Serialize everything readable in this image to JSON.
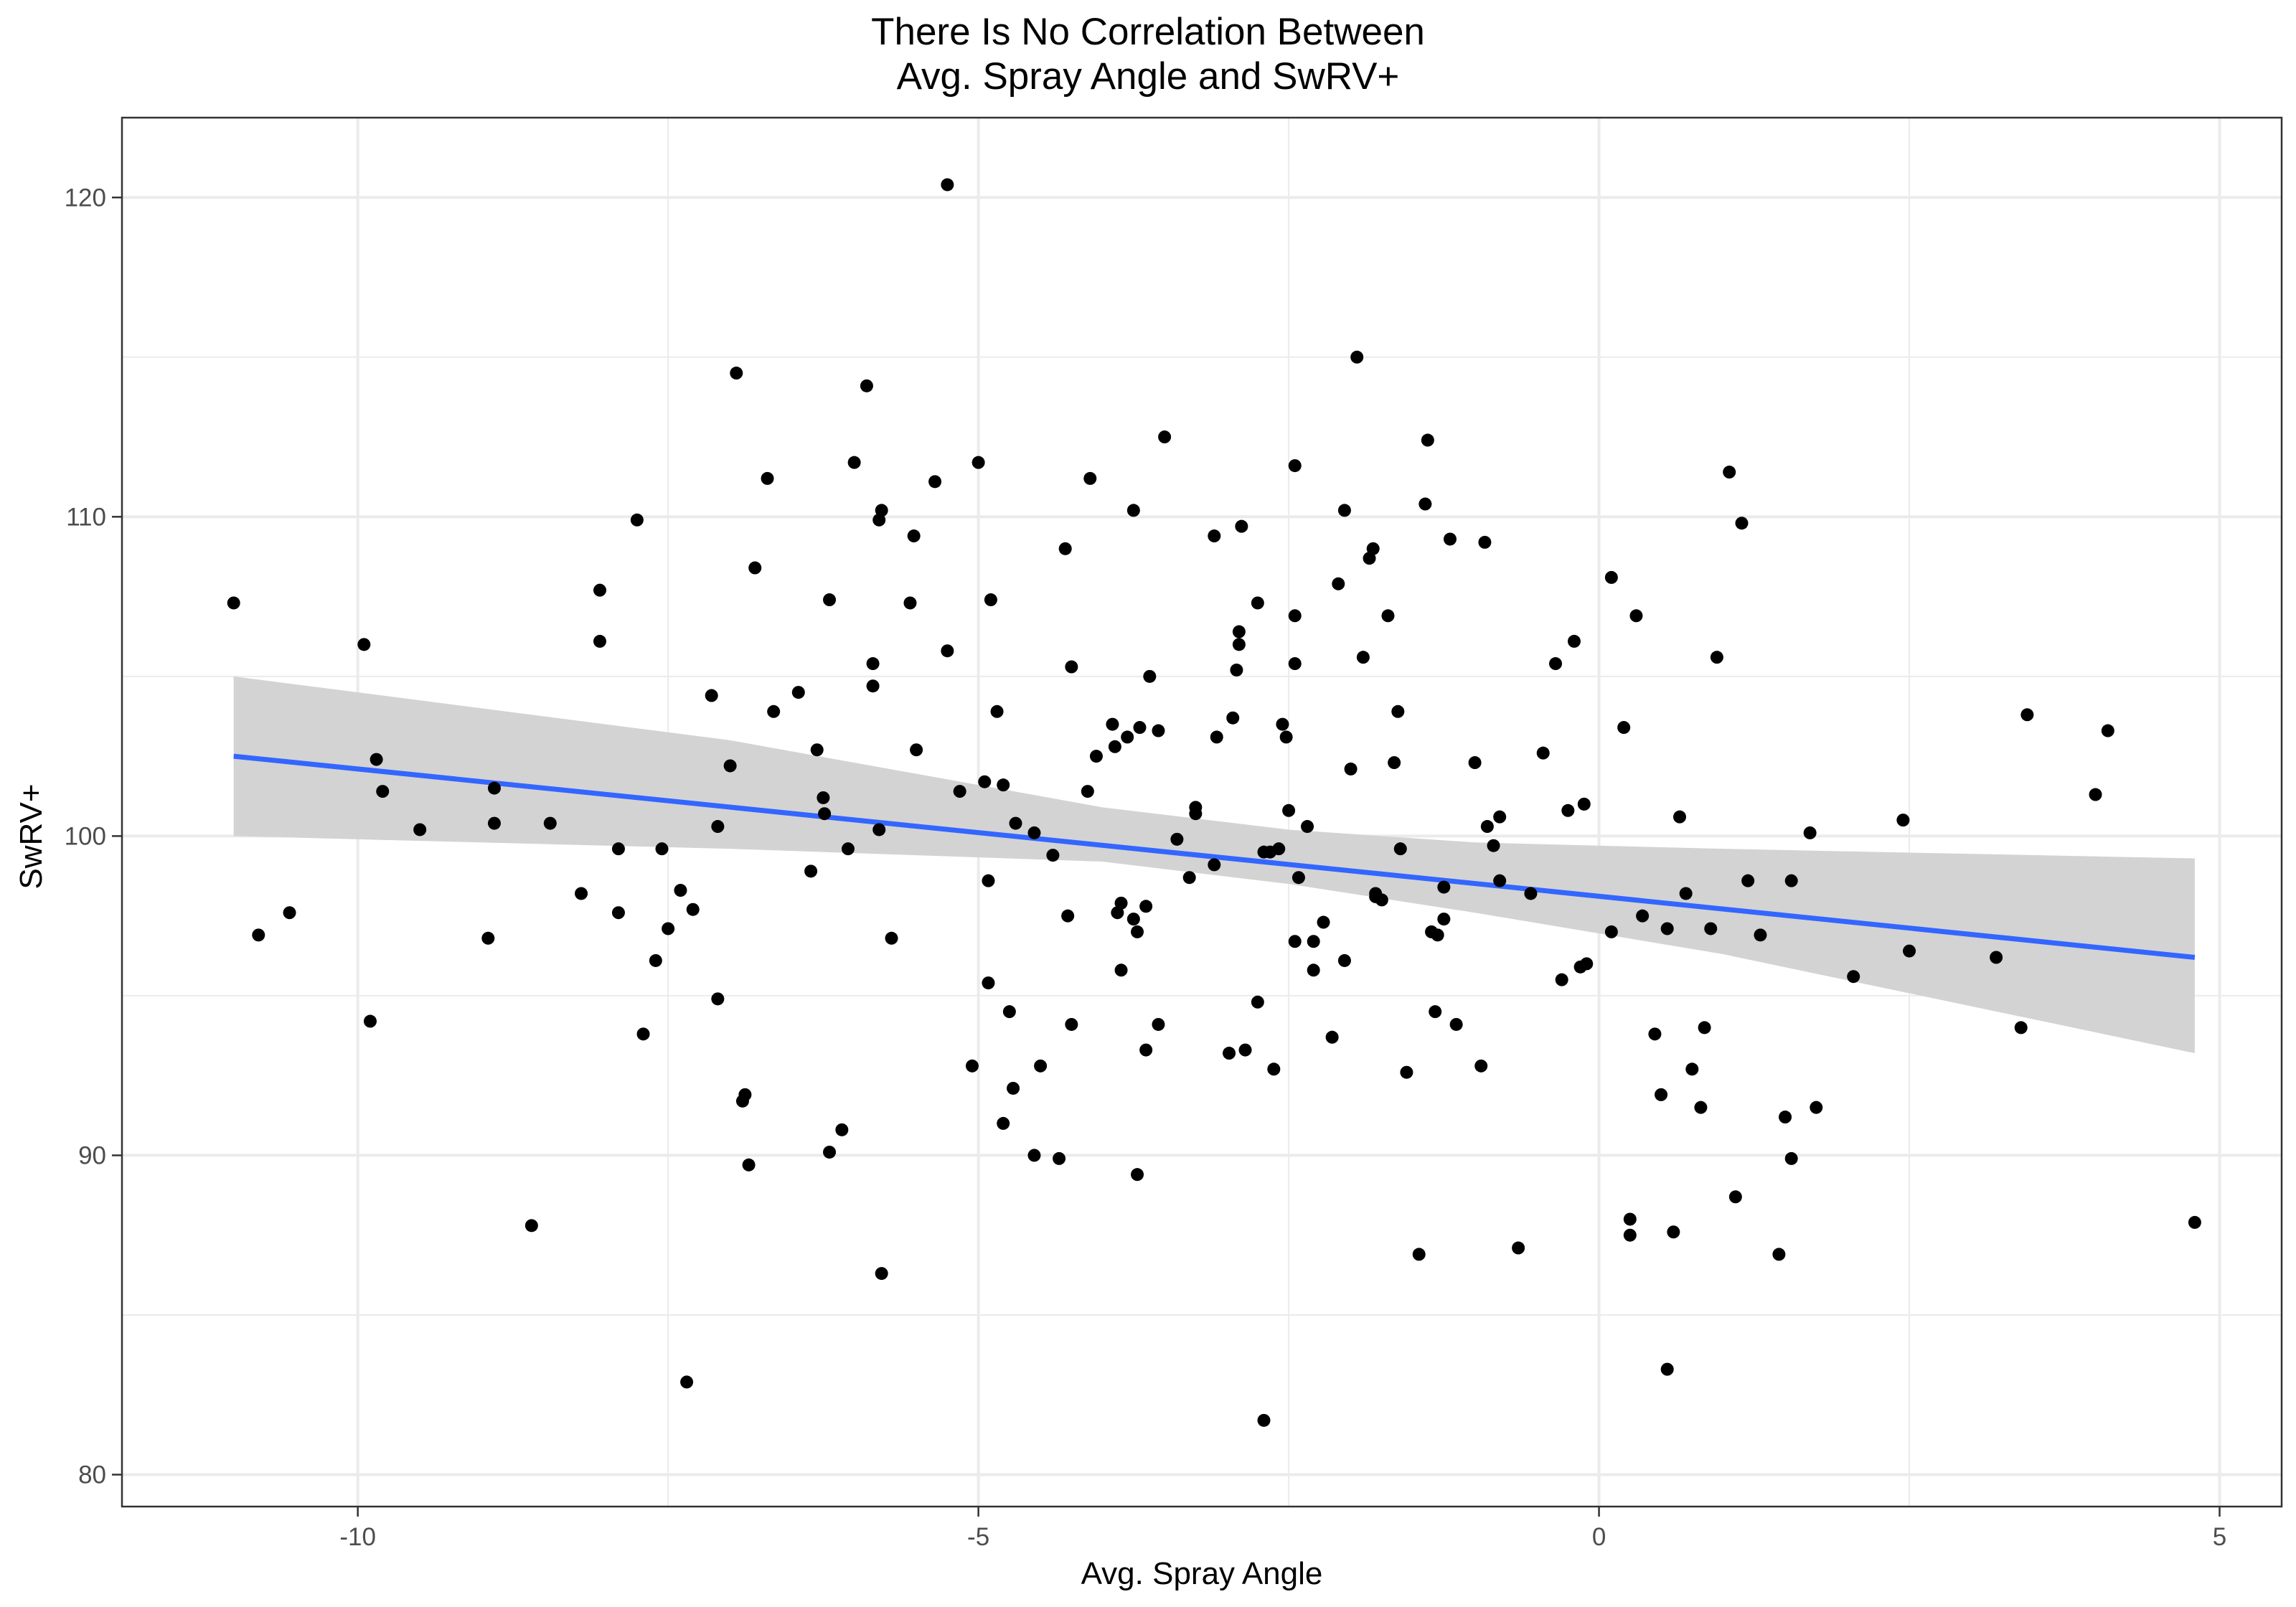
{
  "chart_data": {
    "type": "scatter",
    "title_lines": [
      "There Is No Correlation Between",
      "Avg. Spray Angle and SwRV+"
    ],
    "xlabel": "Avg. Spray Angle",
    "ylabel": "SwRV+",
    "xlim": [
      -11.9,
      5.5
    ],
    "ylim": [
      79.0,
      122.5
    ],
    "x_ticks": [
      -10,
      -5,
      0,
      5
    ],
    "x_tick_labels": [
      "-10",
      "-5",
      "0",
      "5"
    ],
    "y_ticks": [
      80,
      90,
      100,
      110,
      120
    ],
    "y_tick_labels": [
      "80",
      "90",
      "100",
      "110",
      "120"
    ],
    "grid": true,
    "colors": {
      "points": "#000000",
      "trend_line": "#3366ff",
      "confidence_band": "#d3d3d3",
      "grid": "#ebebeb",
      "panel_border": "#333333"
    },
    "trend_line": {
      "x": [
        -11.0,
        4.8
      ],
      "y": [
        102.5,
        96.2
      ]
    },
    "confidence_band": {
      "x": [
        -11.0,
        -7.0,
        -4.0,
        -2.5,
        -1.0,
        1.0,
        4.8
      ],
      "upper": [
        105.0,
        103.0,
        100.9,
        100.2,
        99.8,
        99.6,
        99.3
      ],
      "lower": [
        100.0,
        99.6,
        99.2,
        98.5,
        97.6,
        96.3,
        93.2
      ]
    },
    "points": [
      [
        -11.0,
        107.3
      ],
      [
        -10.8,
        96.9
      ],
      [
        -10.55,
        97.6
      ],
      [
        -9.95,
        106.0
      ],
      [
        -9.9,
        94.2
      ],
      [
        -9.85,
        102.4
      ],
      [
        -9.8,
        101.4
      ],
      [
        -9.5,
        100.2
      ],
      [
        -8.95,
        96.8
      ],
      [
        -8.9,
        101.5
      ],
      [
        -8.9,
        100.4
      ],
      [
        -8.6,
        87.8
      ],
      [
        -8.45,
        100.4
      ],
      [
        -8.2,
        98.2
      ],
      [
        -8.05,
        107.7
      ],
      [
        -8.05,
        106.1
      ],
      [
        -7.9,
        99.6
      ],
      [
        -7.9,
        97.6
      ],
      [
        -7.75,
        109.9
      ],
      [
        -7.7,
        93.8
      ],
      [
        -7.6,
        96.1
      ],
      [
        -7.55,
        99.6
      ],
      [
        -7.5,
        97.1
      ],
      [
        -7.4,
        98.3
      ],
      [
        -7.35,
        82.9
      ],
      [
        -7.3,
        97.7
      ],
      [
        -7.15,
        104.4
      ],
      [
        -7.1,
        94.9
      ],
      [
        -7.1,
        100.3
      ],
      [
        -7.0,
        102.2
      ],
      [
        -6.95,
        114.5
      ],
      [
        -6.9,
        91.7
      ],
      [
        -6.88,
        91.9
      ],
      [
        -6.85,
        89.7
      ],
      [
        -6.8,
        108.4
      ],
      [
        -6.7,
        111.2
      ],
      [
        -6.65,
        103.9
      ],
      [
        -6.45,
        104.5
      ],
      [
        -6.35,
        98.9
      ],
      [
        -6.3,
        102.7
      ],
      [
        -6.25,
        101.2
      ],
      [
        -6.24,
        100.7
      ],
      [
        -6.2,
        90.1
      ],
      [
        -6.2,
        107.4
      ],
      [
        -6.1,
        90.8
      ],
      [
        -6.05,
        99.6
      ],
      [
        -6.0,
        111.7
      ],
      [
        -5.9,
        114.1
      ],
      [
        -5.85,
        104.7
      ],
      [
        -5.85,
        105.4
      ],
      [
        -5.8,
        100.2
      ],
      [
        -5.8,
        109.9
      ],
      [
        -5.78,
        110.2
      ],
      [
        -5.78,
        86.3
      ],
      [
        -5.7,
        96.8
      ],
      [
        -5.55,
        107.3
      ],
      [
        -5.52,
        109.4
      ],
      [
        -5.5,
        102.7
      ],
      [
        -5.35,
        111.1
      ],
      [
        -5.25,
        120.4
      ],
      [
        -5.25,
        105.8
      ],
      [
        -5.15,
        101.4
      ],
      [
        -5.05,
        92.8
      ],
      [
        -5.0,
        111.7
      ],
      [
        -4.95,
        101.7
      ],
      [
        -4.92,
        95.4
      ],
      [
        -4.9,
        107.4
      ],
      [
        -4.92,
        98.6
      ],
      [
        -4.85,
        103.9
      ],
      [
        -4.8,
        101.6
      ],
      [
        -4.8,
        91.0
      ],
      [
        -4.75,
        94.5
      ],
      [
        -4.72,
        92.1
      ],
      [
        -4.7,
        100.4
      ],
      [
        -4.55,
        90.0
      ],
      [
        -4.55,
        100.1
      ],
      [
        -4.5,
        92.8
      ],
      [
        -4.4,
        99.4
      ],
      [
        -4.35,
        89.9
      ],
      [
        -4.3,
        109.0
      ],
      [
        -4.28,
        97.5
      ],
      [
        -4.25,
        105.3
      ],
      [
        -4.25,
        94.1
      ],
      [
        -4.12,
        101.4
      ],
      [
        -4.1,
        111.2
      ],
      [
        -4.05,
        102.5
      ],
      [
        -3.92,
        103.5
      ],
      [
        -3.9,
        102.8
      ],
      [
        -3.88,
        97.6
      ],
      [
        -3.85,
        97.9
      ],
      [
        -3.85,
        95.8
      ],
      [
        -3.8,
        103.1
      ],
      [
        -3.75,
        110.2
      ],
      [
        -3.75,
        97.4
      ],
      [
        -3.72,
        97.0
      ],
      [
        -3.72,
        89.4
      ],
      [
        -3.7,
        103.4
      ],
      [
        -3.65,
        97.8
      ],
      [
        -3.65,
        93.3
      ],
      [
        -3.62,
        105.0
      ],
      [
        -3.55,
        103.3
      ],
      [
        -3.55,
        94.1
      ],
      [
        -3.5,
        112.5
      ],
      [
        -3.4,
        99.9
      ],
      [
        -3.3,
        98.7
      ],
      [
        -3.25,
        100.9
      ],
      [
        -3.25,
        100.7
      ],
      [
        -3.1,
        99.1
      ],
      [
        -3.1,
        109.4
      ],
      [
        -3.08,
        103.1
      ],
      [
        -2.98,
        93.2
      ],
      [
        -2.95,
        103.7
      ],
      [
        -2.92,
        105.2
      ],
      [
        -2.9,
        106.4
      ],
      [
        -2.9,
        106.0
      ],
      [
        -2.88,
        109.7
      ],
      [
        -2.85,
        93.3
      ],
      [
        -2.75,
        107.3
      ],
      [
        -2.75,
        94.8
      ],
      [
        -2.7,
        81.7
      ],
      [
        -2.7,
        99.5
      ],
      [
        -2.65,
        99.5
      ],
      [
        -2.62,
        92.7
      ],
      [
        -2.58,
        99.6
      ],
      [
        -2.55,
        103.5
      ],
      [
        -2.52,
        103.1
      ],
      [
        -2.5,
        100.8
      ],
      [
        -2.45,
        111.6
      ],
      [
        -2.45,
        106.9
      ],
      [
        -2.45,
        105.4
      ],
      [
        -2.42,
        98.7
      ],
      [
        -2.35,
        100.3
      ],
      [
        -2.3,
        96.7
      ],
      [
        -2.3,
        95.8
      ],
      [
        -2.22,
        97.3
      ],
      [
        -2.15,
        93.7
      ],
      [
        -2.1,
        107.9
      ],
      [
        -2.05,
        110.2
      ],
      [
        -2.05,
        96.1
      ],
      [
        -2.0,
        102.1
      ],
      [
        -1.95,
        115.0
      ],
      [
        -1.9,
        105.6
      ],
      [
        -1.85,
        108.7
      ],
      [
        -1.82,
        109.0
      ],
      [
        -1.8,
        98.1
      ],
      [
        -1.75,
        98.0
      ],
      [
        -1.7,
        106.9
      ],
      [
        -1.65,
        102.3
      ],
      [
        -1.62,
        103.9
      ],
      [
        -1.6,
        99.6
      ],
      [
        -1.55,
        92.6
      ],
      [
        -1.45,
        86.9
      ],
      [
        -1.4,
        110.4
      ],
      [
        -1.38,
        112.4
      ],
      [
        -1.35,
        97.0
      ],
      [
        -1.32,
        94.5
      ],
      [
        -1.3,
        96.9
      ],
      [
        -1.25,
        97.4
      ],
      [
        -1.2,
        109.3
      ],
      [
        -1.15,
        94.1
      ],
      [
        -1.0,
        102.3
      ],
      [
        -0.95,
        92.8
      ],
      [
        -0.92,
        109.2
      ],
      [
        -0.9,
        100.3
      ],
      [
        -0.85,
        99.7
      ],
      [
        -0.8,
        98.6
      ],
      [
        -0.8,
        100.6
      ],
      [
        -0.65,
        87.1
      ],
      [
        -0.45,
        102.6
      ],
      [
        -0.35,
        105.4
      ],
      [
        -0.3,
        95.5
      ],
      [
        -0.25,
        100.8
      ],
      [
        -0.2,
        106.1
      ],
      [
        -0.15,
        95.9
      ],
      [
        -0.12,
        101.0
      ],
      [
        -0.1,
        96.0
      ],
      [
        0.1,
        97.0
      ],
      [
        0.1,
        108.1
      ],
      [
        0.2,
        103.4
      ],
      [
        0.25,
        88.0
      ],
      [
        0.25,
        87.5
      ],
      [
        0.3,
        106.9
      ],
      [
        0.35,
        97.5
      ],
      [
        0.45,
        93.8
      ],
      [
        0.5,
        91.9
      ],
      [
        0.55,
        83.3
      ],
      [
        0.6,
        87.6
      ],
      [
        0.7,
        98.2
      ],
      [
        0.65,
        100.6
      ],
      [
        0.75,
        92.7
      ],
      [
        0.82,
        91.5
      ],
      [
        0.85,
        94.0
      ],
      [
        0.9,
        97.1
      ],
      [
        0.95,
        105.6
      ],
      [
        1.05,
        111.4
      ],
      [
        1.1,
        88.7
      ],
      [
        1.15,
        109.8
      ],
      [
        1.2,
        98.6
      ],
      [
        1.45,
        86.9
      ],
      [
        1.5,
        91.2
      ],
      [
        1.55,
        89.9
      ],
      [
        1.55,
        98.6
      ],
      [
        1.7,
        100.1
      ],
      [
        1.75,
        91.5
      ],
      [
        2.05,
        95.6
      ],
      [
        2.45,
        100.5
      ],
      [
        2.5,
        96.4
      ],
      [
        3.2,
        96.2
      ],
      [
        3.4,
        94.0
      ],
      [
        3.45,
        103.8
      ],
      [
        4.0,
        101.3
      ],
      [
        4.1,
        103.3
      ],
      [
        4.8,
        87.9
      ],
      [
        -1.8,
        98.2
      ],
      [
        -0.55,
        98.2
      ],
      [
        0.55,
        97.1
      ],
      [
        -2.45,
        96.7
      ],
      [
        -1.25,
        98.4
      ],
      [
        1.3,
        96.9
      ]
    ]
  }
}
